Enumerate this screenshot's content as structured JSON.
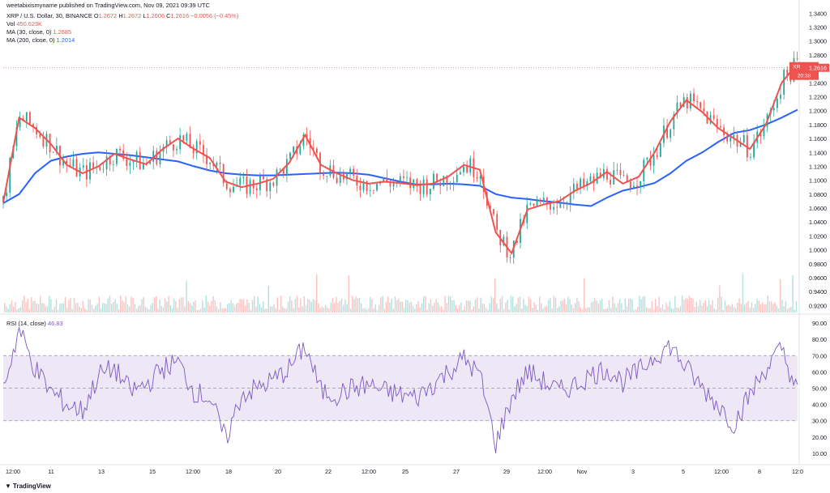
{
  "header": {
    "attribution": "weetabixismyname published on TradingView.com, Nov 09, 2021 09:39 UTC",
    "symbol_line": "XRP / U.S. Dollar, 30, BINANCE",
    "ohlc": {
      "o_label": "O",
      "o": "1.2672",
      "h_label": "H",
      "h": "1.2672",
      "l_label": "L",
      "l": "1.2606",
      "c_label": "C",
      "c": "1.2616",
      "change": "−0.0056 (−0.45%)"
    },
    "vol_label": "Vol",
    "vol_value": "450.623K",
    "ma30_label": "MA (30, close, 0)",
    "ma30_value": "1.2685",
    "ma200_label": "MA (200, close, 0)",
    "ma200_value": "1.2014",
    "rsi_label": "RSI (14, close)",
    "rsi_value": "46.83"
  },
  "footer": {
    "brand": "TradingView"
  },
  "colors": {
    "ma30": "#ef5350",
    "ma200": "#2962ff",
    "up": "#26a69a",
    "down": "#ef5350",
    "rsi": "#7e57c2",
    "rsi_band": "#ede7f6"
  },
  "chart_data": [
    {
      "type": "line",
      "title": "XRP / U.S. Dollar, 30, BINANCE",
      "currency": "USD",
      "ylim": [
        0.91,
        1.345
      ],
      "y_ticks": [
        "1.3400",
        "1.3200",
        "1.3000",
        "1.2800",
        "1.2600",
        "1.2400",
        "1.2200",
        "1.2000",
        "1.1800",
        "1.1600",
        "1.1400",
        "1.1200",
        "1.1000",
        "1.0800",
        "1.0600",
        "1.0400",
        "1.0200",
        "1.0000",
        "0.9800",
        "0.9600",
        "0.9400",
        "0.9200"
      ],
      "x_ticks": [
        "12:00",
        "11",
        "13",
        "15",
        "12:00",
        "18",
        "20",
        "22",
        "12:00",
        "25",
        "27",
        "29",
        "12:00",
        "Nov",
        "3",
        "5",
        "12:00",
        "8",
        "12:0"
      ],
      "current_price_label": "XRPUSD",
      "current_price": "1.2616",
      "countdown": "20:38",
      "x": [
        0,
        2,
        4,
        6,
        8,
        10,
        12,
        14,
        16,
        18,
        20,
        22,
        24,
        26,
        28,
        30,
        32,
        34,
        36,
        38,
        40,
        42,
        44,
        46,
        48,
        50,
        52,
        54,
        56,
        58,
        60,
        62,
        64,
        66,
        68,
        70,
        72,
        74,
        76,
        78,
        80,
        82,
        84,
        86,
        88,
        90,
        92,
        94,
        96,
        98,
        100
      ],
      "series": [
        {
          "name": "MA (30, close, 0)",
          "values": [
            1.068,
            1.19,
            1.175,
            1.152,
            1.122,
            1.11,
            1.12,
            1.138,
            1.13,
            1.123,
            1.144,
            1.16,
            1.145,
            1.132,
            1.098,
            1.09,
            1.095,
            1.102,
            1.125,
            1.165,
            1.122,
            1.11,
            1.1,
            1.095,
            1.098,
            1.096,
            1.093,
            1.095,
            1.105,
            1.122,
            1.115,
            1.025,
            0.995,
            1.058,
            1.065,
            1.07,
            1.085,
            1.096,
            1.112,
            1.095,
            1.105,
            1.14,
            1.185,
            1.215,
            1.198,
            1.175,
            1.16,
            1.145,
            1.18,
            1.24,
            1.2685
          ]
        },
        {
          "name": "MA (200, close, 0)",
          "values": [
            1.067,
            1.08,
            1.11,
            1.128,
            1.134,
            1.138,
            1.14,
            1.138,
            1.136,
            1.133,
            1.13,
            1.127,
            1.12,
            1.114,
            1.11,
            1.108,
            1.107,
            1.107,
            1.108,
            1.109,
            1.11,
            1.111,
            1.11,
            1.108,
            1.103,
            1.098,
            1.094,
            1.094,
            1.095,
            1.094,
            1.092,
            1.08,
            1.075,
            1.073,
            1.07,
            1.068,
            1.065,
            1.063,
            1.075,
            1.085,
            1.09,
            1.096,
            1.11,
            1.128,
            1.14,
            1.155,
            1.168,
            1.172,
            1.18,
            1.19,
            1.2014
          ]
        }
      ]
    },
    {
      "type": "line",
      "title": "RSI (14, close)",
      "ylim": [
        5,
        93
      ],
      "y_ticks": [
        "90.00",
        "80.00",
        "70.00",
        "60.00",
        "50.00",
        "40.00",
        "30.00",
        "20.00",
        "10.00"
      ],
      "bands": [
        30,
        50,
        70
      ],
      "x": [
        0,
        2,
        4,
        6,
        8,
        10,
        12,
        14,
        16,
        18,
        20,
        22,
        24,
        26,
        28,
        30,
        32,
        34,
        36,
        38,
        40,
        42,
        44,
        46,
        48,
        50,
        52,
        54,
        56,
        58,
        60,
        62,
        64,
        66,
        68,
        70,
        72,
        74,
        76,
        78,
        80,
        82,
        84,
        86,
        88,
        90,
        92,
        94,
        96,
        98,
        100
      ],
      "series": [
        {
          "name": "RSI (14, close)",
          "values": [
            50,
            86,
            62,
            48,
            40,
            36,
            58,
            62,
            48,
            52,
            62,
            66,
            48,
            44,
            18,
            46,
            50,
            55,
            62,
            76,
            48,
            46,
            50,
            52,
            48,
            46,
            44,
            52,
            60,
            68,
            58,
            16,
            44,
            60,
            54,
            48,
            52,
            58,
            62,
            54,
            60,
            70,
            76,
            62,
            50,
            40,
            28,
            46,
            62,
            74,
            46.83
          ]
        }
      ]
    }
  ]
}
